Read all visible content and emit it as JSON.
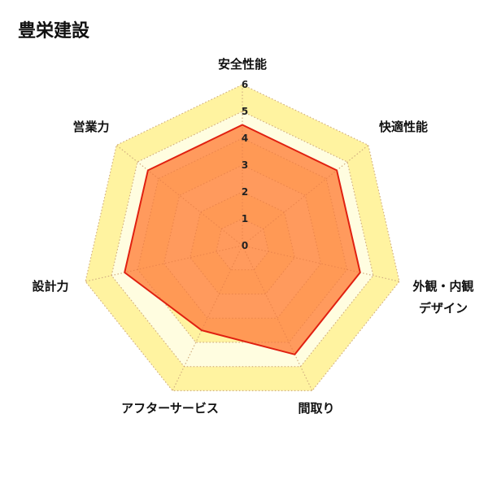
{
  "chart_data": {
    "type": "radar",
    "title": "豊栄建設",
    "axes": [
      "安全性能",
      "快適性能",
      "外観・内観デザイン",
      "間取り",
      "アフターサービス",
      "設計力",
      "営業力"
    ],
    "axis_label_lines": [
      [
        "安全性能"
      ],
      [
        "快適性能"
      ],
      [
        "外観・内観",
        "デザイン"
      ],
      [
        "間取り"
      ],
      [
        "アフターサービス"
      ],
      [
        "設計力"
      ],
      [
        "営業力"
      ]
    ],
    "series": [
      {
        "values": [
          4.5,
          4.5,
          4.5,
          4.5,
          3.5,
          4.5,
          4.5
        ]
      }
    ],
    "rlim": [
      0,
      6
    ],
    "ticks": [
      0,
      1,
      2,
      3,
      4,
      5,
      6
    ],
    "grid": true,
    "colors": {
      "fill": "#ff8c4a",
      "stroke": "#e02010",
      "band_light": "#fffde0",
      "band_dark": "#fff3a0",
      "grid": "#d8d0a0"
    }
  }
}
